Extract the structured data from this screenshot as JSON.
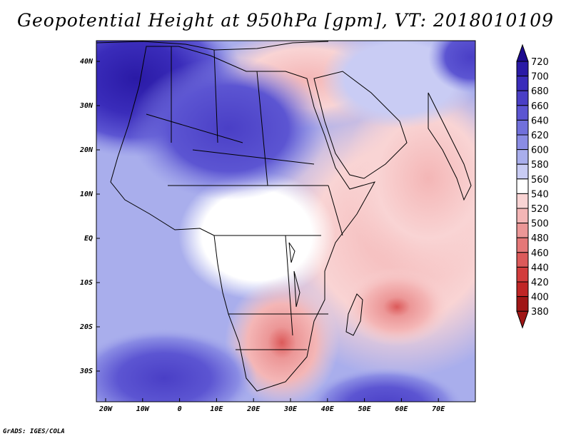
{
  "title": "Geopotential Height at 950hPa [gpm], VT: 2018010109",
  "credit": "GrADS: IGES/COLA",
  "x_ticks": [
    "20W",
    "10W",
    "0",
    "10E",
    "20E",
    "30E",
    "40E",
    "50E",
    "60E",
    "70E"
  ],
  "y_ticks": [
    "40N",
    "30N",
    "20N",
    "10N",
    "EQ",
    "10S",
    "20S",
    "30S"
  ],
  "colorbar": {
    "labels": [
      "720",
      "700",
      "680",
      "660",
      "640",
      "620",
      "600",
      "580",
      "560",
      "540",
      "520",
      "500",
      "480",
      "460",
      "440",
      "420",
      "400",
      "380"
    ],
    "colors": [
      "#1c0a8e",
      "#2a1aa6",
      "#3a2cba",
      "#4a3fc6",
      "#5c55d2",
      "#7170db",
      "#8a8ce4",
      "#a9aeec",
      "#c9ccf4",
      "#ffffff",
      "#f9d4d4",
      "#f4b6b6",
      "#ec9797",
      "#e57878",
      "#dc5a5a",
      "#d23c3c",
      "#c02626",
      "#a01616"
    ]
  }
}
